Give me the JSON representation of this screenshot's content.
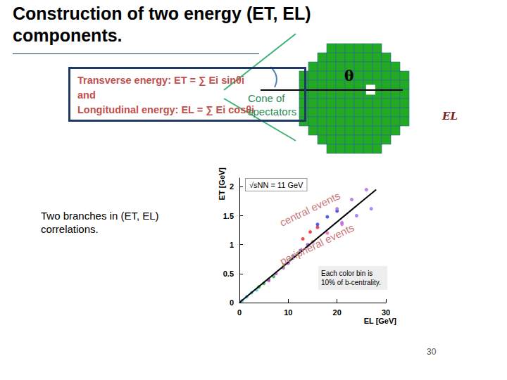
{
  "slide": {
    "title": "Construction of two energy (ET, EL) components.",
    "formula_lines": [
      "Transverse energy: ET = ∑ Ei sinθi",
      "and",
      "Longitudinal energy: EL = ∑ Ei cosθi"
    ],
    "diagram": {
      "cone_label": "Cone of spectators",
      "angle_label": "θ",
      "beam_label": "EL"
    },
    "side_text": "Two branches in (ET, EL) correlations.",
    "page_number": "30"
  },
  "chart_data": {
    "type": "scatter",
    "x_label": "EL [GeV]",
    "y_label": "ET [GeV]",
    "xlim": [
      0,
      30
    ],
    "xticks": [
      0,
      10,
      20,
      30
    ],
    "ylim": [
      0,
      2.15
    ],
    "yticks": [
      0,
      0.5,
      1,
      1.5,
      2
    ],
    "grid": false,
    "annotations": [
      "√sNN = 11 GeV",
      "central events",
      "peripheral events",
      "Each color bin is 10% of b-centrality."
    ],
    "series": [
      {
        "color": "#33ccee",
        "values": [
          [
            0.5,
            0.03
          ],
          [
            1.5,
            0.1
          ],
          [
            2.5,
            0.17
          ],
          [
            3.5,
            0.22
          ]
        ]
      },
      {
        "color": "#22aa44",
        "values": [
          [
            4,
            0.27
          ],
          [
            5,
            0.33
          ],
          [
            6,
            0.4
          ],
          [
            7,
            0.45
          ]
        ]
      },
      {
        "color": "#cc44cc",
        "values": [
          [
            6,
            0.38
          ],
          [
            7.5,
            0.5
          ],
          [
            9,
            0.6
          ],
          [
            10,
            0.68
          ]
        ]
      },
      {
        "color": "#66cc66",
        "values": [
          [
            9,
            0.62
          ],
          [
            10.5,
            0.75
          ],
          [
            12,
            0.85
          ]
        ]
      },
      {
        "color": "#8844cc",
        "values": [
          [
            11,
            0.8
          ],
          [
            12.5,
            0.9
          ],
          [
            14,
            1.0
          ]
        ]
      },
      {
        "color": "#ee2222",
        "values": [
          [
            13,
            1.1
          ],
          [
            14.5,
            1.22
          ],
          [
            16,
            1.3
          ]
        ]
      },
      {
        "color": "#2233ee",
        "values": [
          [
            16,
            1.35
          ],
          [
            18,
            1.48
          ],
          [
            20,
            1.58
          ]
        ]
      },
      {
        "color": "#aa66dd",
        "values": [
          [
            20,
            1.62
          ],
          [
            23,
            1.78
          ],
          [
            26,
            1.95
          ]
        ]
      },
      {
        "color": "#ee66aa",
        "values": [
          [
            15,
            1.05
          ],
          [
            18,
            1.2
          ],
          [
            21,
            1.35
          ]
        ]
      },
      {
        "color": "#9966ff",
        "values": [
          [
            21,
            1.38
          ],
          [
            24,
            1.5
          ],
          [
            27,
            1.62
          ]
        ]
      },
      {
        "type": "line",
        "color": "#000000",
        "values": [
          [
            0,
            0
          ],
          [
            28,
            1.95
          ]
        ]
      }
    ]
  }
}
